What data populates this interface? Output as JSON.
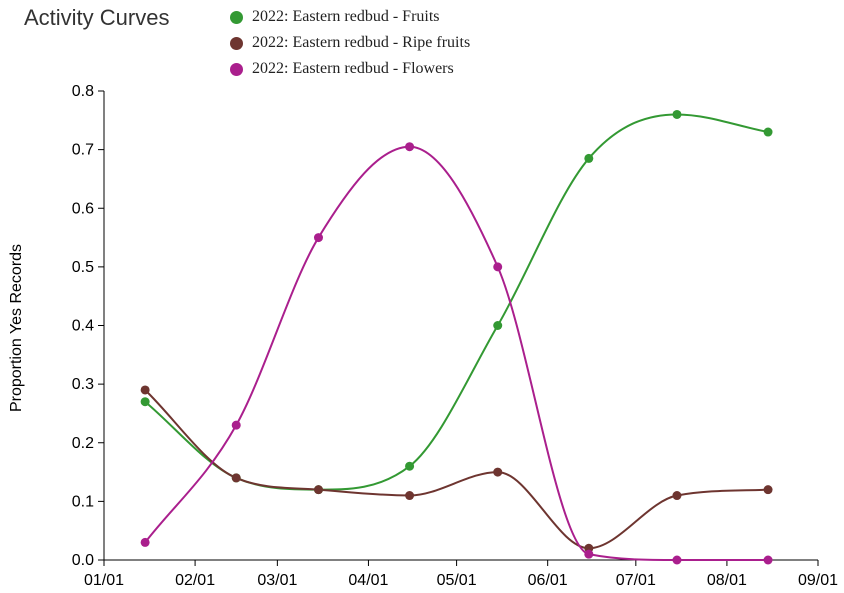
{
  "chart_data": {
    "type": "line",
    "title": "Activity Curves",
    "xlabel": "",
    "ylabel": "Proportion Yes Records",
    "x_ticks": [
      "01/01",
      "02/01",
      "03/01",
      "04/01",
      "05/01",
      "06/01",
      "07/01",
      "08/01",
      "09/01"
    ],
    "y_ticks": [
      "0.0",
      "0.1",
      "0.2",
      "0.3",
      "0.4",
      "0.5",
      "0.6",
      "0.7",
      "0.8"
    ],
    "ylim": [
      0,
      0.8
    ],
    "xlim": [
      "01/01",
      "09/01"
    ],
    "grid": false,
    "legend_position": "top",
    "x": [
      "01/15",
      "02/15",
      "03/15",
      "04/15",
      "05/15",
      "06/15",
      "07/15",
      "08/15"
    ],
    "series": [
      {
        "name": "2022: Eastern redbud - Fruits",
        "color": "#339933",
        "values": [
          0.27,
          0.14,
          0.12,
          0.16,
          0.4,
          0.685,
          0.76,
          0.73
        ]
      },
      {
        "name": "2022: Eastern redbud - Ripe fruits",
        "color": "#6e3530",
        "values": [
          0.29,
          0.14,
          0.12,
          0.11,
          0.15,
          0.02,
          0.11,
          0.12
        ]
      },
      {
        "name": "2022: Eastern redbud - Flowers",
        "color": "#aa1f8d",
        "values": [
          0.03,
          0.23,
          0.55,
          0.705,
          0.5,
          0.01,
          0.0,
          0.0
        ]
      }
    ]
  }
}
